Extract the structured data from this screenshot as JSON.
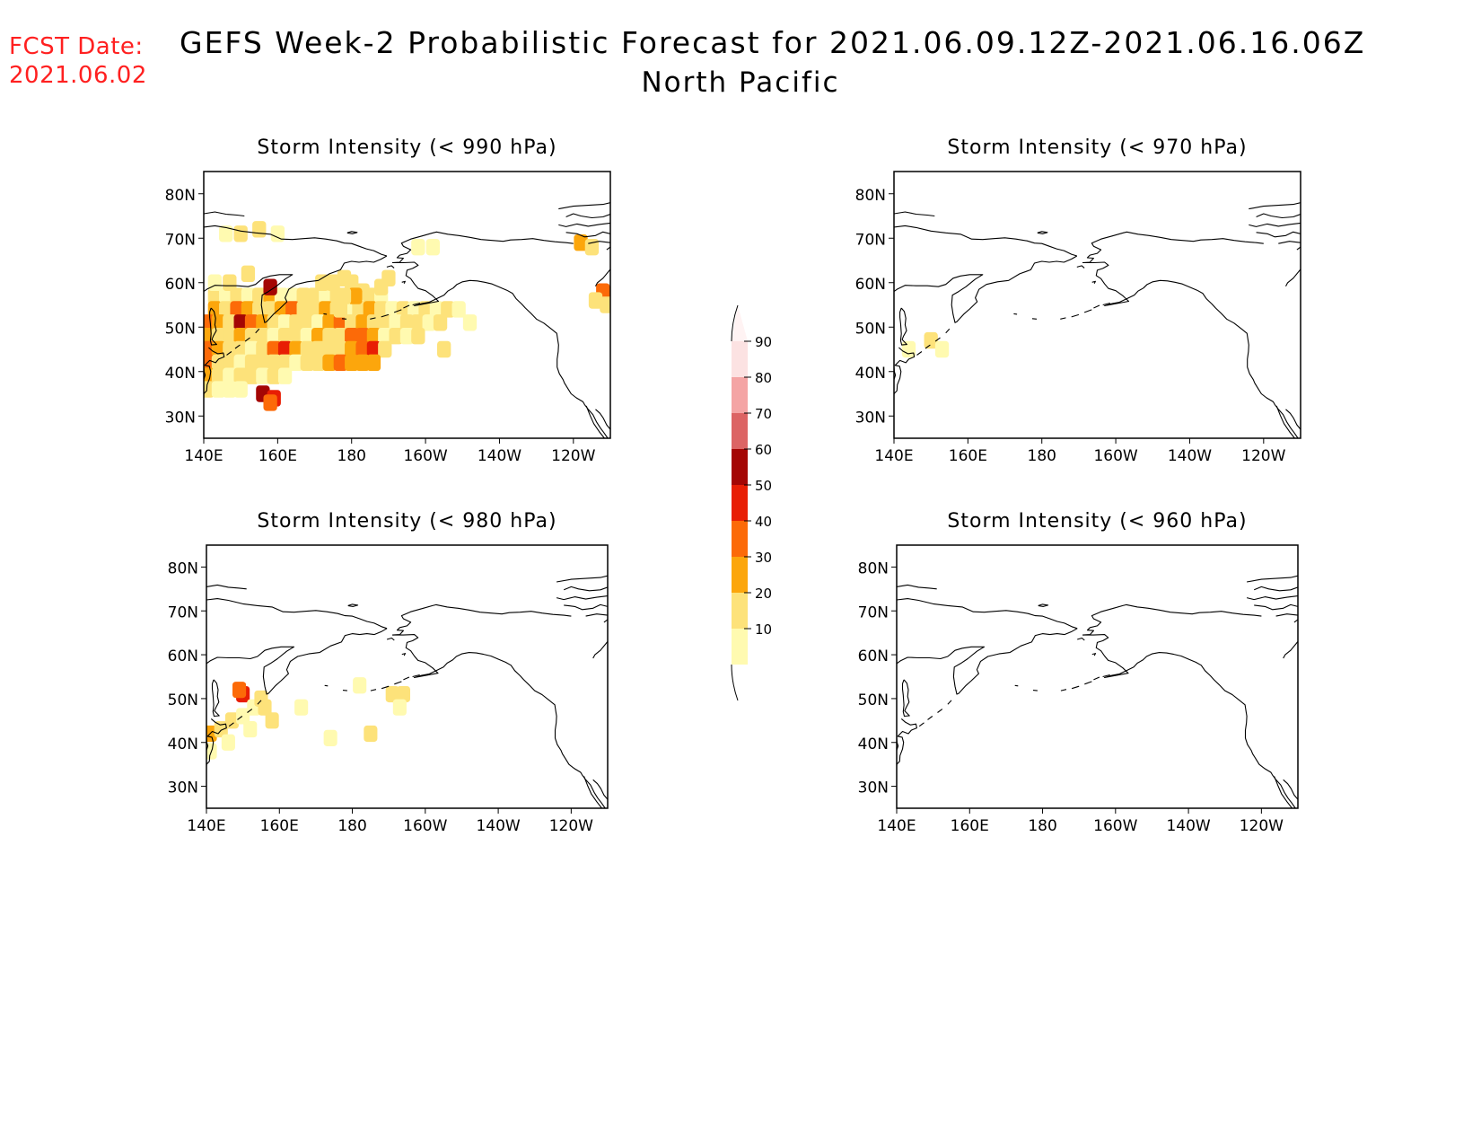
{
  "header": {
    "fcst_label": "FCST Date:",
    "fcst_date": "2021.06.02",
    "title": "GEFS Week-2 Probabilistic Forecast for 2021.06.09.12Z-2021.06.16.06Z",
    "subtitle": "North Pacific"
  },
  "panels": [
    {
      "id": "p990",
      "title": "Storm Intensity (< 990 hPa)"
    },
    {
      "id": "p970",
      "title": "Storm Intensity (< 970 hPa)"
    },
    {
      "id": "p980",
      "title": "Storm Intensity (< 980 hPa)"
    },
    {
      "id": "p960",
      "title": "Storm Intensity (< 960 hPa)"
    }
  ],
  "axes": {
    "lat_ticks": [
      "80N",
      "70N",
      "60N",
      "50N",
      "40N",
      "30N"
    ],
    "lon_ticks": [
      "140E",
      "160E",
      "180",
      "160W",
      "140W",
      "120W"
    ],
    "lat_range": [
      25,
      85
    ],
    "lon_range": [
      140,
      250
    ]
  },
  "colorbar": {
    "labels": [
      "10",
      "20",
      "30",
      "40",
      "50",
      "60",
      "70",
      "80",
      "90"
    ],
    "colors": [
      "#fffab0",
      "#fde27a",
      "#fca60c",
      "#fc6a08",
      "#e81e04",
      "#a40604",
      "#dc6464",
      "#f4a4a4",
      "#fce2e2"
    ]
  }
}
